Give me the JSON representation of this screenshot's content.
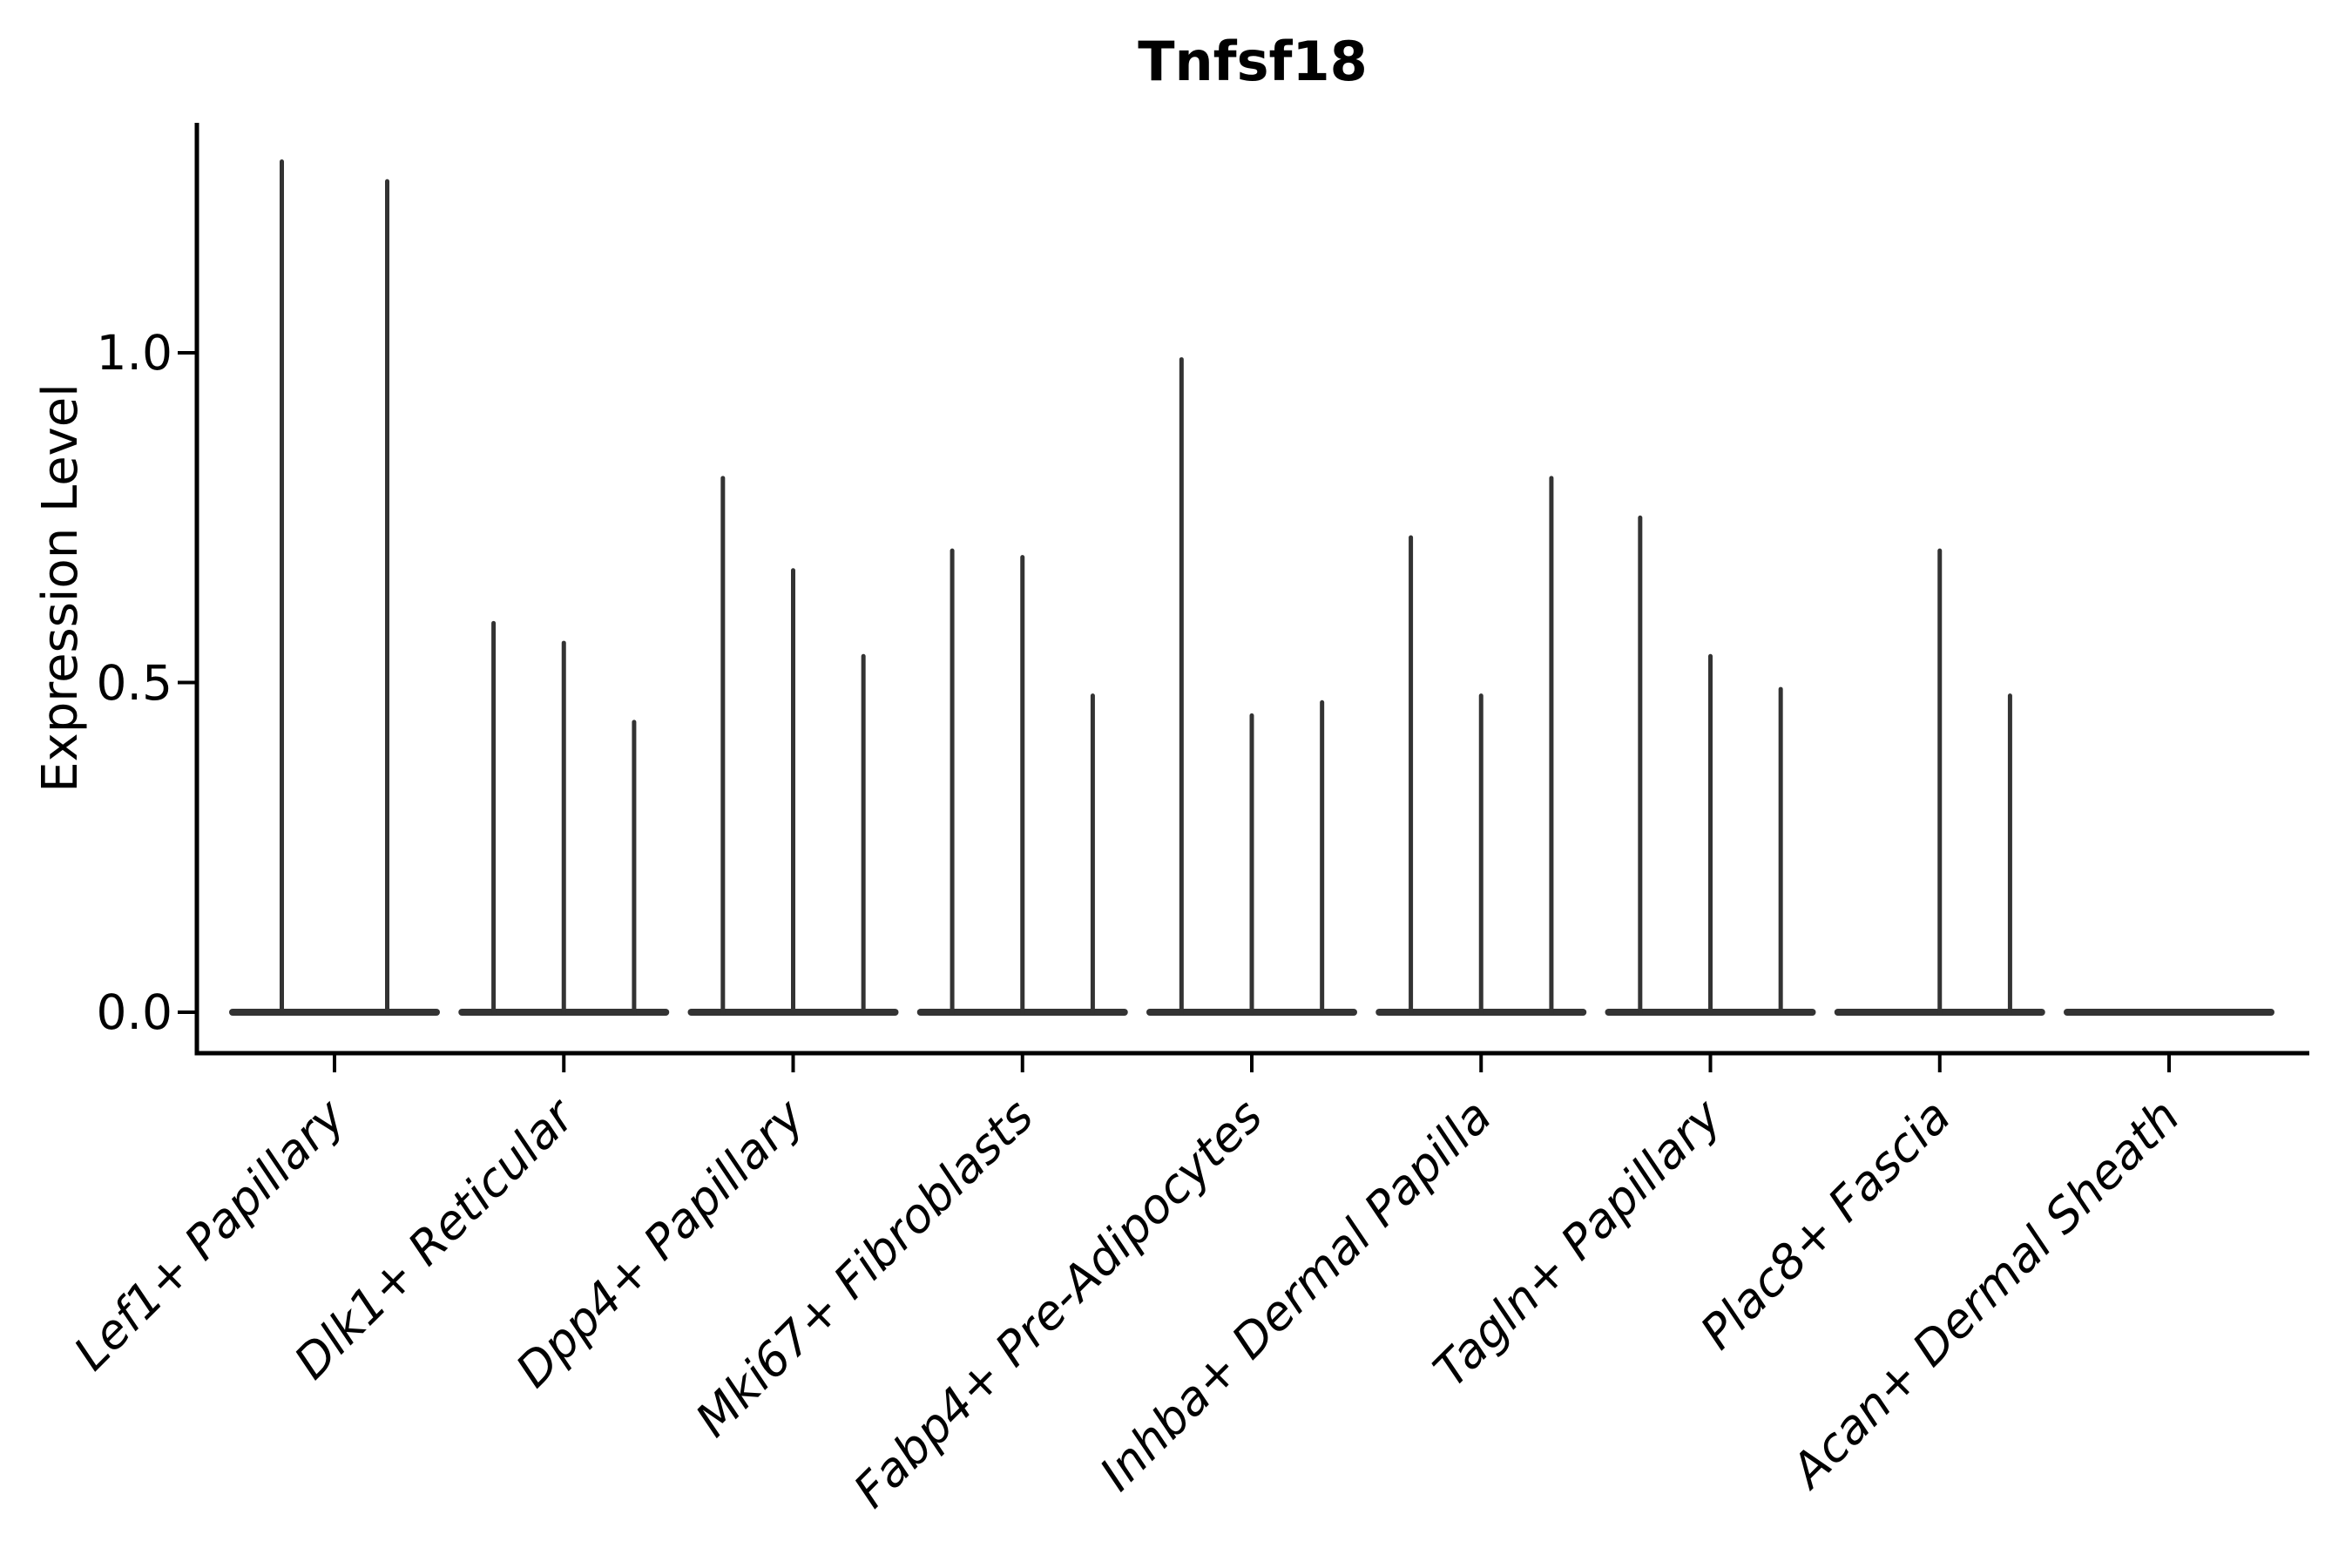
{
  "chart_data": {
    "type": "violin",
    "title": "Tnfsf18",
    "ylabel": "Expression Level",
    "xlabel": "",
    "ylim": [
      0,
      1.35
    ],
    "yticks": [
      0,
      0.5,
      1.0
    ],
    "ytick_labels": [
      "0.0",
      "0.5",
      "1.0"
    ],
    "grid": false,
    "legend": "none",
    "baseline_value": 0,
    "categories": [
      "Lef1+ Papillary",
      "Dlk1+ Reticular",
      "Dpp4+ Papillary",
      "Mki67+ Fibroblasts",
      "Fabp4+ Pre-Adipocytes",
      "Inhba+ Dermal Papilla",
      "Tagln+ Papillary",
      "Plac8+ Fascia",
      "Acan+ Dermal Sheath"
    ],
    "series": [
      {
        "category": "Lef1+ Papillary",
        "violin_max_values": [
          1.29,
          1.26
        ]
      },
      {
        "category": "Dlk1+ Reticular",
        "violin_max_values": [
          0.59,
          0.56,
          0.44
        ]
      },
      {
        "category": "Dpp4+ Papillary",
        "violin_max_values": [
          0.81,
          0.67,
          0.54
        ]
      },
      {
        "category": "Mki67+ Fibroblasts",
        "violin_max_values": [
          0.7,
          0.69,
          0.48
        ]
      },
      {
        "category": "Fabp4+ Pre-Adipocytes",
        "violin_max_values": [
          0.99,
          0.45,
          0.47
        ]
      },
      {
        "category": "Inhba+ Dermal Papilla",
        "violin_max_values": [
          0.72,
          0.48,
          0.81
        ]
      },
      {
        "category": "Tagln+ Papillary",
        "violin_max_values": [
          0.75,
          0.54,
          0.49
        ]
      },
      {
        "category": "Plac8+ Fascia",
        "violin_max_values": [
          0.0,
          0.7,
          0.48
        ]
      },
      {
        "category": "Acan+ Dermal Sheath",
        "violin_max_values": [
          0.0,
          0.0,
          0.0
        ]
      }
    ],
    "colors": {
      "violin": "#333333",
      "axis": "#000000",
      "text": "#000000",
      "background": "#ffffff"
    }
  }
}
